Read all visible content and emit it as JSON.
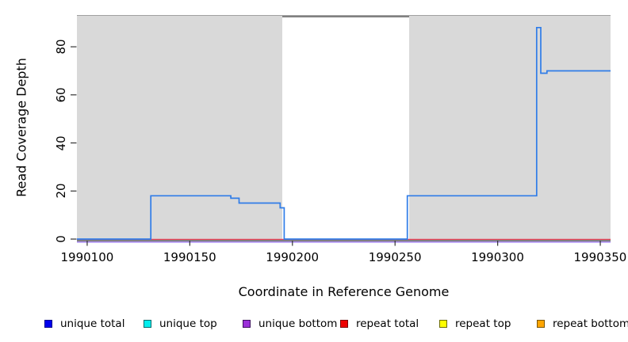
{
  "y_axis": {
    "title": "Read Coverage Depth",
    "ticks": [
      "0",
      "20",
      "40",
      "60",
      "80"
    ]
  },
  "x_axis": {
    "title": "Coordinate in Reference Genome",
    "ticks": [
      "1990100",
      "1990150",
      "1990200",
      "1990250",
      "1990300",
      "1990350"
    ]
  },
  "legend": {
    "items": [
      {
        "label": "unique total",
        "fill": "#0000EE",
        "border": "#00008B"
      },
      {
        "label": "unique top",
        "fill": "#00EEEE",
        "border": "#006B6B"
      },
      {
        "label": "unique bottom",
        "fill": "#9B30D9",
        "border": "#3E1060"
      },
      {
        "label": "repeat total",
        "fill": "#EE0000",
        "border": "#7A0000"
      },
      {
        "label": "repeat top",
        "fill": "#FFFF00",
        "border": "#6B6B00"
      },
      {
        "label": "repeat bottom",
        "fill": "#FFA500",
        "border": "#7A5500"
      }
    ]
  },
  "chart_data": {
    "type": "line",
    "subtype": "step-coverage",
    "title": "",
    "xlabel": "Coordinate in Reference Genome",
    "ylabel": "Read Coverage Depth",
    "xlim": [
      1990095,
      1990355
    ],
    "ylim": [
      0,
      93
    ],
    "x_ticks": [
      1990100,
      1990150,
      1990200,
      1990250,
      1990300,
      1990350
    ],
    "y_ticks": [
      0,
      20,
      40,
      60,
      80
    ],
    "grid": false,
    "legend_position": "bottom",
    "plot_bg": "#D9D9D9",
    "masked_region": {
      "start": 1990195,
      "end": 1990257,
      "fill": "#FFFFFF",
      "top_border": "#828282"
    },
    "series": [
      {
        "name": "unique total",
        "color": "#2F7CE8",
        "style": "step",
        "segments": [
          [
            1990095,
            1990131,
            0
          ],
          [
            1990131,
            1990170,
            18
          ],
          [
            1990170,
            1990174,
            17
          ],
          [
            1990174,
            1990194,
            15
          ],
          [
            1990194,
            1990196,
            13
          ],
          [
            1990196,
            1990256,
            0
          ],
          [
            1990256,
            1990319,
            18
          ],
          [
            1990319,
            1990321,
            88
          ],
          [
            1990321,
            1990324,
            69
          ],
          [
            1990324,
            1990355,
            70
          ]
        ]
      },
      {
        "name": "repeat total",
        "color": "#E84055",
        "style": "constant",
        "value": 0
      },
      {
        "name": "unique bottom",
        "color": "#9B78EE",
        "style": "constant",
        "value": 0,
        "position": "just below x-axis"
      }
    ],
    "axis_color": "#333333"
  }
}
